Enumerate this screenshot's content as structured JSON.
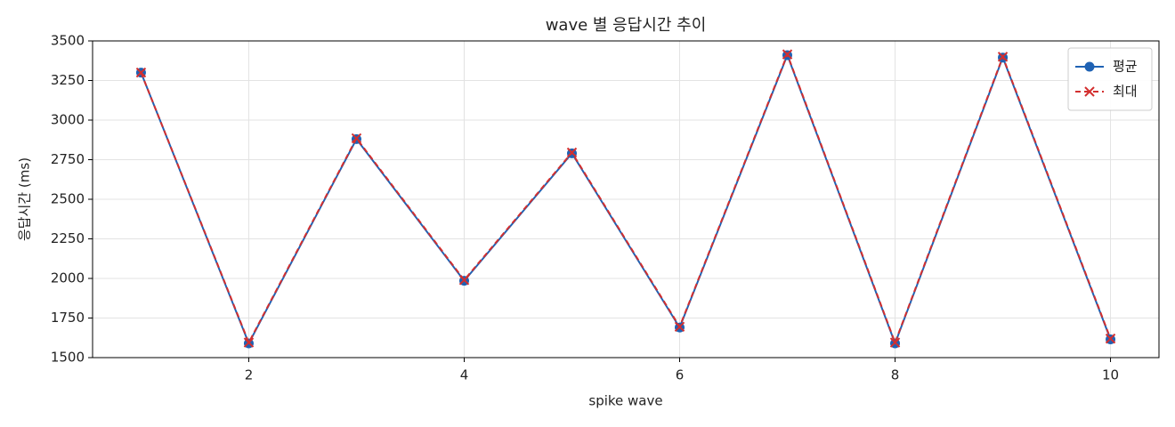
{
  "chart_data": {
    "type": "line",
    "title": "wave 별 응답시간 추이",
    "x_label": "spike wave",
    "y_label": "응답시간 (ms)",
    "x": [
      1,
      2,
      3,
      4,
      5,
      6,
      7,
      8,
      9,
      10
    ],
    "series": [
      {
        "name": "평균",
        "color": "#1f62b4",
        "marker": "circle",
        "dash": false,
        "values": [
          3300,
          1590,
          2880,
          1985,
          2790,
          1690,
          3410,
          1590,
          3395,
          1615
        ]
      },
      {
        "name": "최대",
        "color": "#d32f2f",
        "marker": "x",
        "dash": true,
        "values": [
          3300,
          1595,
          2885,
          1990,
          2795,
          1695,
          3415,
          1595,
          3400,
          1620
        ]
      }
    ],
    "xlim": [
      0.55,
      10.45
    ],
    "xticks": [
      2,
      4,
      6,
      8,
      10
    ],
    "ylim": [
      1500,
      3500
    ],
    "yticks": [
      1500,
      1750,
      2000,
      2250,
      2500,
      2750,
      3000,
      3250,
      3500
    ],
    "grid": true,
    "legend": "upper-right"
  }
}
